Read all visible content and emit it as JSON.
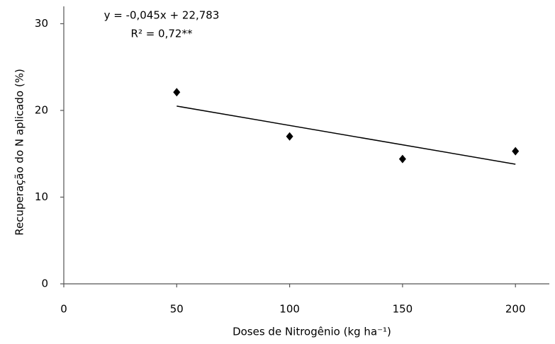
{
  "chart_data": {
    "type": "scatter",
    "x_label": "Doses de Nitrogênio (kg ha⁻¹)",
    "y_label": "Recuperação do N aplicado (%)",
    "annotations": [
      "y = -0,045x + 22,783",
      "R² = 0,72**"
    ],
    "x": [
      50,
      100,
      150,
      200
    ],
    "series": [
      {
        "name": "Recuperação",
        "color": "#000000",
        "values": [
          22.1,
          17.0,
          14.4,
          15.3
        ]
      }
    ],
    "trendline": {
      "x": [
        50,
        200
      ],
      "values": [
        20.5,
        13.8
      ],
      "color": "#000000"
    },
    "xlim": [
      0,
      215
    ],
    "xticks": [
      0,
      50,
      100,
      150,
      200
    ],
    "ylim": [
      0,
      32
    ],
    "yticks": [
      0,
      10,
      20,
      30
    ],
    "grid": false
  }
}
